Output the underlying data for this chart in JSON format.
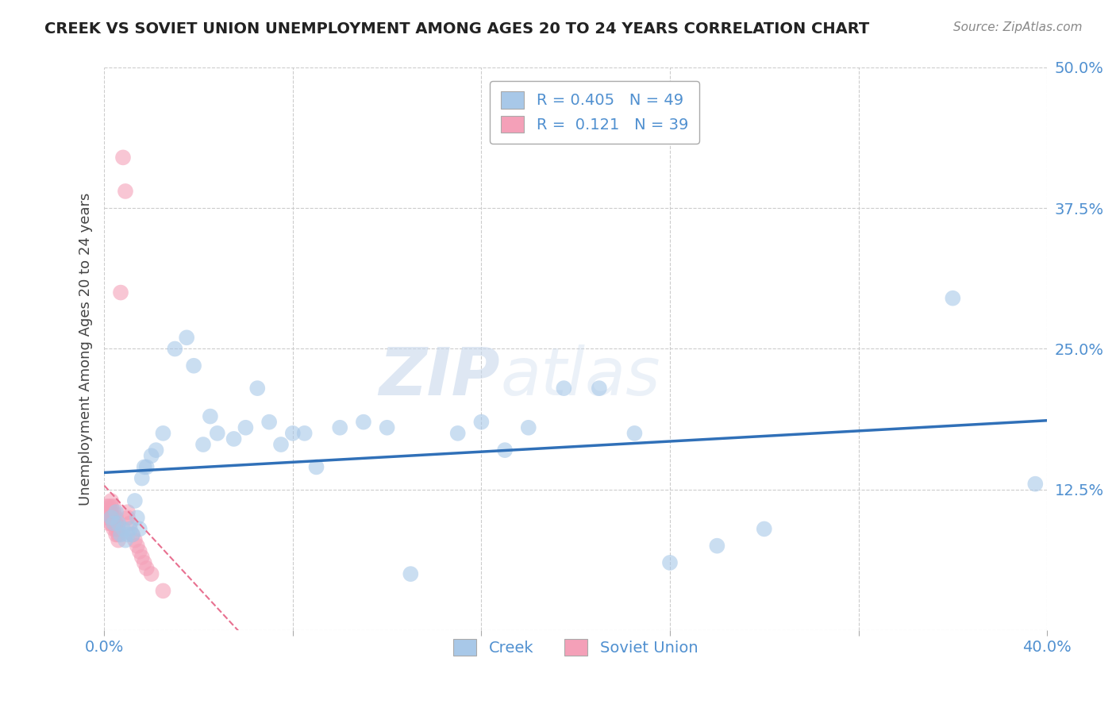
{
  "title": "CREEK VS SOVIET UNION UNEMPLOYMENT AMONG AGES 20 TO 24 YEARS CORRELATION CHART",
  "source": "Source: ZipAtlas.com",
  "ylabel": "Unemployment Among Ages 20 to 24 years",
  "xlim": [
    0.0,
    0.4
  ],
  "ylim": [
    0.0,
    0.5
  ],
  "yticks": [
    0.0,
    0.125,
    0.25,
    0.375,
    0.5
  ],
  "ytick_labels": [
    "",
    "12.5%",
    "25.0%",
    "37.5%",
    "50.0%"
  ],
  "xticks": [
    0.0,
    0.08,
    0.16,
    0.24,
    0.32,
    0.4
  ],
  "xtick_labels": [
    "0.0%",
    "",
    "",
    "",
    "",
    "40.0%"
  ],
  "creek_R": 0.405,
  "creek_N": 49,
  "soviet_R": 0.121,
  "soviet_N": 39,
  "creek_color": "#a8c8e8",
  "soviet_color": "#f4a0b8",
  "creek_line_color": "#3070b8",
  "soviet_line_color": "#e87090",
  "background_color": "#ffffff",
  "grid_color": "#cccccc",
  "title_color": "#222222",
  "axis_label_color": "#5090d0",
  "creek_x": [
    0.003,
    0.004,
    0.005,
    0.006,
    0.007,
    0.008,
    0.009,
    0.01,
    0.011,
    0.012,
    0.013,
    0.014,
    0.015,
    0.016,
    0.017,
    0.018,
    0.02,
    0.022,
    0.025,
    0.03,
    0.035,
    0.038,
    0.042,
    0.045,
    0.048,
    0.055,
    0.06,
    0.065,
    0.07,
    0.075,
    0.08,
    0.085,
    0.09,
    0.1,
    0.11,
    0.12,
    0.13,
    0.15,
    0.16,
    0.17,
    0.18,
    0.195,
    0.21,
    0.225,
    0.24,
    0.26,
    0.28,
    0.36,
    0.395
  ],
  "creek_y": [
    0.1,
    0.095,
    0.105,
    0.095,
    0.085,
    0.09,
    0.08,
    0.085,
    0.09,
    0.085,
    0.115,
    0.1,
    0.09,
    0.135,
    0.145,
    0.145,
    0.155,
    0.16,
    0.175,
    0.25,
    0.26,
    0.235,
    0.165,
    0.19,
    0.175,
    0.17,
    0.18,
    0.215,
    0.185,
    0.165,
    0.175,
    0.175,
    0.145,
    0.18,
    0.185,
    0.18,
    0.05,
    0.175,
    0.185,
    0.16,
    0.18,
    0.215,
    0.215,
    0.175,
    0.06,
    0.075,
    0.09,
    0.295,
    0.13
  ],
  "soviet_x": [
    0.001,
    0.001,
    0.001,
    0.002,
    0.002,
    0.002,
    0.002,
    0.003,
    0.003,
    0.003,
    0.003,
    0.003,
    0.004,
    0.004,
    0.004,
    0.004,
    0.004,
    0.005,
    0.005,
    0.005,
    0.005,
    0.006,
    0.006,
    0.006,
    0.007,
    0.008,
    0.009,
    0.01,
    0.01,
    0.011,
    0.012,
    0.013,
    0.014,
    0.015,
    0.016,
    0.017,
    0.018,
    0.02,
    0.025
  ],
  "soviet_y": [
    0.1,
    0.105,
    0.11,
    0.095,
    0.1,
    0.105,
    0.11,
    0.095,
    0.1,
    0.105,
    0.11,
    0.115,
    0.09,
    0.095,
    0.1,
    0.105,
    0.11,
    0.085,
    0.09,
    0.095,
    0.1,
    0.08,
    0.085,
    0.09,
    0.3,
    0.42,
    0.39,
    0.1,
    0.105,
    0.095,
    0.085,
    0.08,
    0.075,
    0.07,
    0.065,
    0.06,
    0.055,
    0.05,
    0.035
  ],
  "watermark_zip": "ZIP",
  "watermark_atlas": "atlas",
  "watermark_color": "#d0dff0"
}
